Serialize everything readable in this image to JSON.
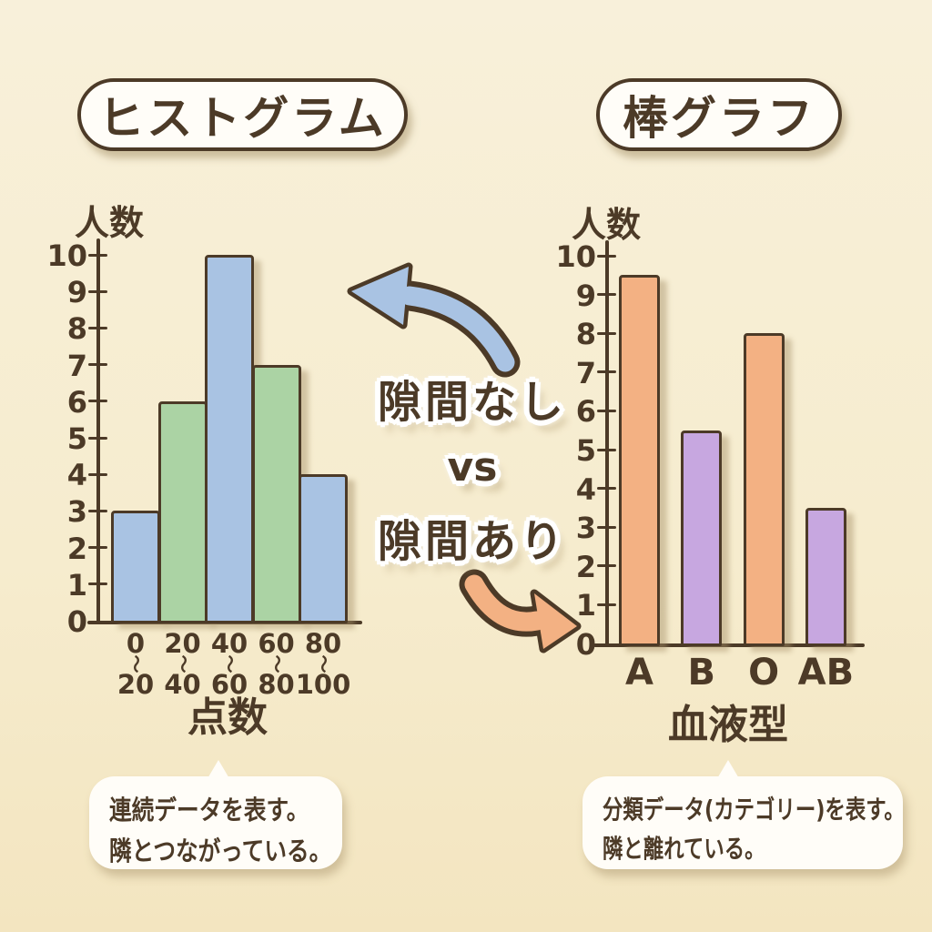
{
  "ink_color": "#4c3a27",
  "background_color": "#f6ecce",
  "titles": {
    "left": "ヒストグラム",
    "right": "棒グラフ"
  },
  "center": {
    "line1": "隙間なし",
    "line2": "vs",
    "line3": "隙間あり"
  },
  "arrows": {
    "to_histogram_color": "#a9c3e3",
    "to_bar_chart_color": "#f3b183"
  },
  "chart_data": [
    {
      "type": "bar",
      "subtype": "histogram",
      "title": "ヒストグラム",
      "ylabel": "人数",
      "xlabel": "点数",
      "categories": [
        "0〜20",
        "20〜40",
        "40〜60",
        "60〜80",
        "80〜100"
      ],
      "values": [
        3,
        6,
        10,
        7,
        4
      ],
      "ylim": [
        0,
        10
      ],
      "ytick_step": 1,
      "bar_colors": [
        "#a9c3e3",
        "#abd3a4",
        "#a9c3e3",
        "#abd3a4",
        "#a9c3e3"
      ],
      "bars_touching": true,
      "grid": false,
      "legend": false
    },
    {
      "type": "bar",
      "subtype": "bar-chart",
      "title": "棒グラフ",
      "ylabel": "人数",
      "xlabel": "血液型",
      "categories": [
        "A",
        "B",
        "O",
        "AB"
      ],
      "values": [
        9.5,
        5.5,
        8,
        3.5
      ],
      "ylim": [
        0,
        10
      ],
      "ytick_step": 1,
      "bar_colors": [
        "#f3b183",
        "#c7a7e0",
        "#f3b183",
        "#c7a7e0"
      ],
      "bars_touching": false,
      "grid": false,
      "legend": false
    }
  ],
  "captions": {
    "left": [
      "連続データを表す。",
      "隣とつながっている。"
    ],
    "right": [
      "分類データ(カテゴリー)を表す。",
      "隣と離れている。"
    ]
  }
}
